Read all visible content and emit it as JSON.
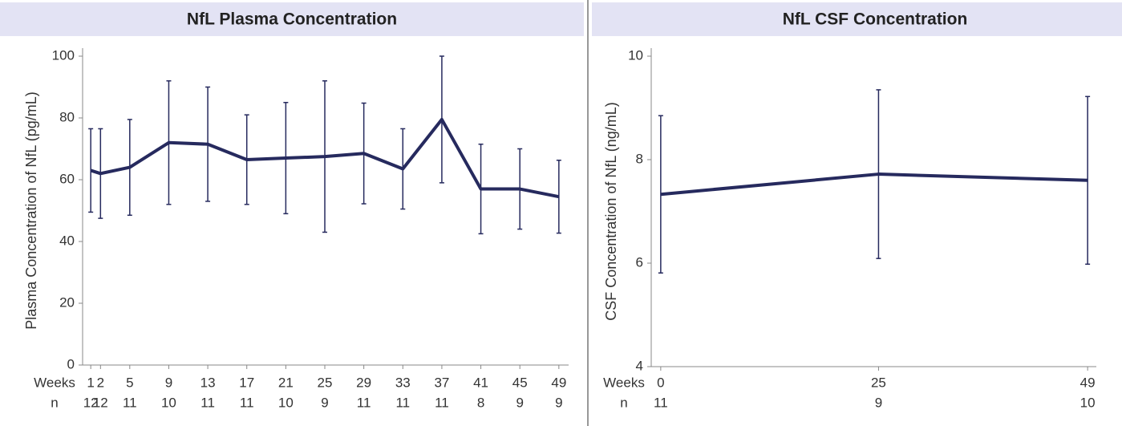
{
  "chart_data": [
    {
      "type": "line",
      "title": "NfL Plasma Concentration",
      "y_label": "Plasma Concentration of NfL (pg/mL)",
      "x_label": "Weeks",
      "n_label": "n",
      "x": [
        1,
        2,
        5,
        9,
        13,
        17,
        21,
        25,
        29,
        33,
        37,
        41,
        45,
        49
      ],
      "n": [
        12,
        12,
        11,
        10,
        11,
        11,
        10,
        9,
        11,
        11,
        11,
        8,
        9,
        9
      ],
      "series": [
        {
          "color": "#262a5e",
          "values": [
            63,
            62,
            64,
            72,
            71.5,
            66.5,
            67,
            67.5,
            68.5,
            63.5,
            79.5,
            57,
            57,
            54.5
          ],
          "errors": [
            13.5,
            14.5,
            15.5,
            20,
            18.5,
            14.5,
            18,
            24.5,
            16.3,
            13,
            20.5,
            14.5,
            13,
            11.8
          ]
        }
      ],
      "xlim": [
        0,
        50
      ],
      "ylim": [
        0,
        100
      ],
      "yticks": [
        0,
        20,
        40,
        60,
        80,
        100
      ]
    },
    {
      "type": "line",
      "title": "NfL CSF Concentration",
      "y_label": "CSF Concentration of NfL (ng/mL)",
      "x_label": "Weeks",
      "n_label": "n",
      "x": [
        0,
        25,
        49
      ],
      "n": [
        11,
        9,
        10
      ],
      "series": [
        {
          "color": "#262a5e",
          "values": [
            7.33,
            7.72,
            7.6
          ],
          "errors": [
            1.52,
            1.63,
            1.62
          ]
        }
      ],
      "xlim": [
        -1,
        50
      ],
      "ylim": [
        4,
        10
      ],
      "yticks": [
        4,
        6,
        8,
        10
      ]
    }
  ]
}
